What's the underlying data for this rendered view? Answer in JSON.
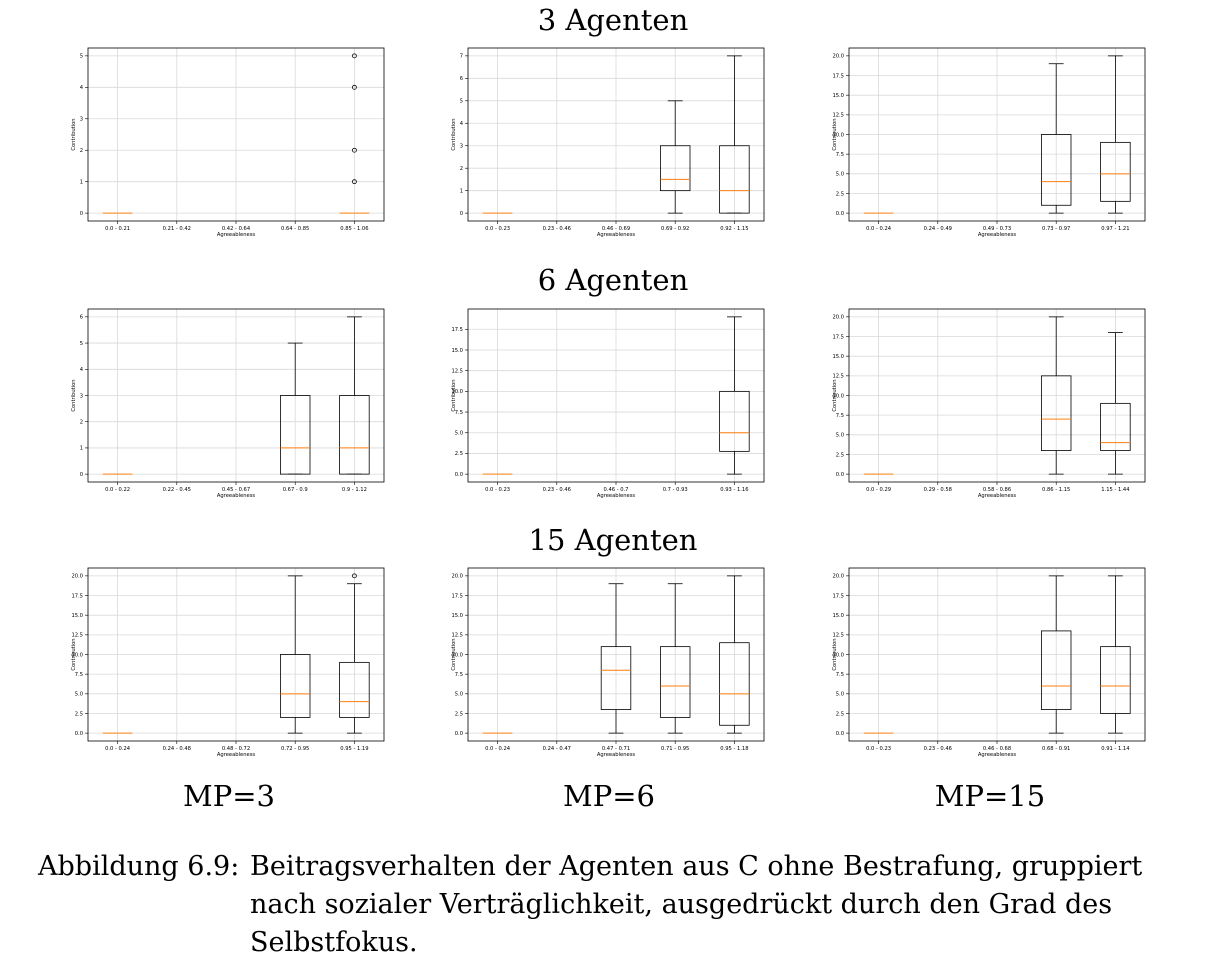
{
  "row_titles": [
    "3 Agenten",
    "6 Agenten",
    "15 Agenten"
  ],
  "column_labels": [
    "MP=3",
    "MP=6",
    "MP=15"
  ],
  "caption": {
    "prefix": "Abbildung 6.9:",
    "text": "Beitragsverhalten der Agenten aus C ohne Bestrafung, gruppiert nach sozialer Verträglichkeit, ausgedrückt durch den Grad des Selbstfokus."
  },
  "colors": {
    "median": "#ff7f0e",
    "box": "#000000",
    "grid": "#d9d9d9"
  },
  "chart_data": [
    {
      "type": "box",
      "xlabel": "Agreeableness",
      "ylabel": "Contribution",
      "ylim": [
        -0.25,
        5.25
      ],
      "yticks": [
        "0",
        "1",
        "2",
        "3",
        "4",
        "5"
      ],
      "grid": true,
      "categories": [
        "0.0 - 0.21",
        "0.21 - 0.42",
        "0.42 - 0.64",
        "0.64 - 0.85",
        "0.85 - 1.06"
      ],
      "boxes": [
        {
          "min": 0,
          "q1": 0,
          "median": 0,
          "q3": 0,
          "max": 0,
          "outliers": []
        },
        null,
        null,
        null,
        {
          "min": 0,
          "q1": 0,
          "median": 0,
          "q3": 0,
          "max": 0,
          "outliers": [
            1,
            2,
            4,
            5
          ]
        }
      ]
    },
    {
      "type": "box",
      "xlabel": "Agreeableness",
      "ylabel": "Contribution",
      "ylim": [
        -0.35,
        7.35
      ],
      "yticks": [
        "0",
        "1",
        "2",
        "3",
        "4",
        "5",
        "6",
        "7"
      ],
      "grid": true,
      "categories": [
        "0.0 - 0.23",
        "0.23 - 0.46",
        "0.46 - 0.69",
        "0.69 - 0.92",
        "0.92 - 1.15"
      ],
      "boxes": [
        {
          "min": 0,
          "q1": 0,
          "median": 0,
          "q3": 0,
          "max": 0,
          "outliers": []
        },
        null,
        null,
        {
          "min": 0,
          "q1": 1,
          "median": 1.5,
          "q3": 3,
          "max": 5,
          "outliers": []
        },
        {
          "min": 0,
          "q1": 0,
          "median": 1,
          "q3": 3,
          "max": 7,
          "outliers": []
        }
      ]
    },
    {
      "type": "box",
      "xlabel": "Agreeableness",
      "ylabel": "Contribution",
      "ylim": [
        -1,
        21
      ],
      "yticks": [
        "0.0",
        "2.5",
        "5.0",
        "7.5",
        "10.0",
        "12.5",
        "15.0",
        "17.5",
        "20.0"
      ],
      "grid": true,
      "categories": [
        "0.0 - 0.24",
        "0.24 - 0.49",
        "0.49 - 0.73",
        "0.73 - 0.97",
        "0.97 - 1.21"
      ],
      "boxes": [
        {
          "min": 0,
          "q1": 0,
          "median": 0,
          "q3": 0,
          "max": 0,
          "outliers": []
        },
        null,
        null,
        {
          "min": 0,
          "q1": 1,
          "median": 4,
          "q3": 10,
          "max": 19,
          "outliers": []
        },
        {
          "min": 0,
          "q1": 1.5,
          "median": 5,
          "q3": 9,
          "max": 20,
          "outliers": []
        }
      ]
    },
    {
      "type": "box",
      "xlabel": "Agreeableness",
      "ylabel": "Contribution",
      "ylim": [
        -0.3,
        6.3
      ],
      "yticks": [
        "0",
        "1",
        "2",
        "3",
        "4",
        "5",
        "6"
      ],
      "grid": true,
      "categories": [
        "0.0 - 0.22",
        "0.22 - 0.45",
        "0.45 - 0.67",
        "0.67 - 0.9",
        "0.9 - 1.12"
      ],
      "boxes": [
        {
          "min": 0,
          "q1": 0,
          "median": 0,
          "q3": 0,
          "max": 0,
          "outliers": []
        },
        null,
        null,
        {
          "min": 0,
          "q1": 0,
          "median": 1,
          "q3": 3,
          "max": 5,
          "outliers": []
        },
        {
          "min": 0,
          "q1": 0,
          "median": 1,
          "q3": 3,
          "max": 6,
          "outliers": []
        }
      ]
    },
    {
      "type": "box",
      "xlabel": "Agreeableness",
      "ylabel": "Contribution",
      "ylim": [
        -0.95,
        19.95
      ],
      "yticks": [
        "0.0",
        "2.5",
        "5.0",
        "7.5",
        "10.0",
        "12.5",
        "15.0",
        "17.5"
      ],
      "grid": true,
      "categories": [
        "0.0 - 0.23",
        "0.23 - 0.46",
        "0.46 - 0.7",
        "0.7 - 0.93",
        "0.93 - 1.16"
      ],
      "boxes": [
        {
          "min": 0,
          "q1": 0,
          "median": 0,
          "q3": 0,
          "max": 0,
          "outliers": []
        },
        null,
        null,
        null,
        {
          "min": 0,
          "q1": 2.75,
          "median": 5,
          "q3": 10,
          "max": 19,
          "outliers": []
        }
      ]
    },
    {
      "type": "box",
      "xlabel": "Agreeableness",
      "ylabel": "Contribution",
      "ylim": [
        -1,
        21
      ],
      "yticks": [
        "0.0",
        "2.5",
        "5.0",
        "7.5",
        "10.0",
        "12.5",
        "15.0",
        "17.5",
        "20.0"
      ],
      "grid": true,
      "categories": [
        "0.0 - 0.29",
        "0.29 - 0.58",
        "0.58 - 0.86",
        "0.86 - 1.15",
        "1.15 - 1.44"
      ],
      "boxes": [
        {
          "min": 0,
          "q1": 0,
          "median": 0,
          "q3": 0,
          "max": 0,
          "outliers": []
        },
        null,
        null,
        {
          "min": 0,
          "q1": 3,
          "median": 7,
          "q3": 12.5,
          "max": 20,
          "outliers": []
        },
        {
          "min": 0,
          "q1": 3,
          "median": 4,
          "q3": 9,
          "max": 18,
          "outliers": []
        }
      ]
    },
    {
      "type": "box",
      "xlabel": "Agreeableness",
      "ylabel": "Contribution",
      "ylim": [
        -1,
        21
      ],
      "yticks": [
        "0.0",
        "2.5",
        "5.0",
        "7.5",
        "10.0",
        "12.5",
        "15.0",
        "17.5",
        "20.0"
      ],
      "grid": true,
      "categories": [
        "0.0 - 0.24",
        "0.24 - 0.48",
        "0.48 - 0.72",
        "0.72 - 0.95",
        "0.95 - 1.19"
      ],
      "boxes": [
        {
          "min": 0,
          "q1": 0,
          "median": 0,
          "q3": 0,
          "max": 0,
          "outliers": []
        },
        null,
        null,
        {
          "min": 0,
          "q1": 2,
          "median": 5,
          "q3": 10,
          "max": 20,
          "outliers": []
        },
        {
          "min": 0,
          "q1": 2,
          "median": 4,
          "q3": 9,
          "max": 19,
          "outliers": [
            20
          ]
        }
      ]
    },
    {
      "type": "box",
      "xlabel": "Agreeableness",
      "ylabel": "Contribution",
      "ylim": [
        -1,
        21
      ],
      "yticks": [
        "0.0",
        "2.5",
        "5.0",
        "7.5",
        "10.0",
        "12.5",
        "15.0",
        "17.5",
        "20.0"
      ],
      "grid": true,
      "categories": [
        "0.0 - 0.24",
        "0.24 - 0.47",
        "0.47 - 0.71",
        "0.71 - 0.95",
        "0.95 - 1.18"
      ],
      "boxes": [
        {
          "min": 0,
          "q1": 0,
          "median": 0,
          "q3": 0,
          "max": 0,
          "outliers": []
        },
        null,
        {
          "min": 0,
          "q1": 3,
          "median": 8,
          "q3": 11,
          "max": 19,
          "outliers": []
        },
        {
          "min": 0,
          "q1": 2,
          "median": 6,
          "q3": 11,
          "max": 19,
          "outliers": []
        },
        {
          "min": 0,
          "q1": 1,
          "median": 5,
          "q3": 11.5,
          "max": 20,
          "outliers": []
        }
      ]
    },
    {
      "type": "box",
      "xlabel": "Agreeableness",
      "ylabel": "Contribution",
      "ylim": [
        -1,
        21
      ],
      "yticks": [
        "0.0",
        "2.5",
        "5.0",
        "7.5",
        "10.0",
        "12.5",
        "15.0",
        "17.5",
        "20.0"
      ],
      "grid": true,
      "categories": [
        "0.0 - 0.23",
        "0.23 - 0.46",
        "0.46 - 0.68",
        "0.68 - 0.91",
        "0.91 - 1.14"
      ],
      "boxes": [
        {
          "min": 0,
          "q1": 0,
          "median": 0,
          "q3": 0,
          "max": 0,
          "outliers": []
        },
        null,
        null,
        {
          "min": 0,
          "q1": 3,
          "median": 6,
          "q3": 13,
          "max": 20,
          "outliers": []
        },
        {
          "min": 0,
          "q1": 2.5,
          "median": 6,
          "q3": 11,
          "max": 20,
          "outliers": []
        }
      ]
    }
  ]
}
